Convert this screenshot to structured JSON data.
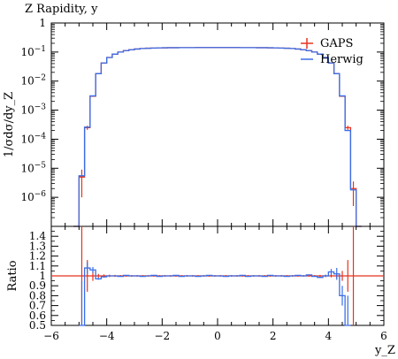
{
  "chart_data": [
    {
      "type": "line",
      "title": "Z Rapidity, y",
      "ylabel": "1/σdσ/dy_Z",
      "yscale": "log",
      "ylim": [
        1e-07,
        1
      ],
      "xlim": [
        -6,
        6
      ],
      "y_ticks": [
        {
          "value": 1,
          "label": "1"
        },
        {
          "value": 0.1,
          "base": "10",
          "exp": "−1"
        },
        {
          "value": 0.01,
          "base": "10",
          "exp": "−2"
        },
        {
          "value": 0.001,
          "base": "10",
          "exp": "−3"
        },
        {
          "value": 0.0001,
          "base": "10",
          "exp": "−4"
        },
        {
          "value": 1e-05,
          "base": "10",
          "exp": "−5"
        },
        {
          "value": 1e-06,
          "base": "10",
          "exp": "−6"
        }
      ],
      "legend_position": "top-right",
      "x_edges": [
        -5.2,
        -5.0,
        -4.8,
        -4.6,
        -4.4,
        -4.2,
        -4.0,
        -3.8,
        -3.6,
        -3.4,
        -3.2,
        -3.0,
        -2.8,
        -2.6,
        -2.4,
        -2.2,
        -2.0,
        -1.8,
        -1.6,
        -1.4,
        -1.2,
        -1.0,
        -0.8,
        -0.6,
        -0.4,
        -0.2,
        0.0,
        0.2,
        0.4,
        0.6,
        0.8,
        1.0,
        1.2,
        1.4,
        1.6,
        1.8,
        2.0,
        2.2,
        2.4,
        2.6,
        2.8,
        3.0,
        3.2,
        3.4,
        3.6,
        3.8,
        4.0,
        4.2,
        4.4,
        4.6,
        4.8,
        5.0,
        5.2
      ],
      "series": [
        {
          "name": "GAPS",
          "color": "#e8321e",
          "style": "markers-errorbars",
          "values": [
            1e-07,
            5e-06,
            0.00025,
            0.003,
            0.018,
            0.042,
            0.065,
            0.085,
            0.1,
            0.112,
            0.12,
            0.127,
            0.132,
            0.135,
            0.137,
            0.139,
            0.14,
            0.141,
            0.141,
            0.142,
            0.142,
            0.142,
            0.143,
            0.143,
            0.143,
            0.143,
            0.143,
            0.143,
            0.143,
            0.143,
            0.142,
            0.142,
            0.142,
            0.141,
            0.141,
            0.14,
            0.139,
            0.137,
            0.135,
            0.132,
            0.127,
            0.12,
            0.112,
            0.1,
            0.085,
            0.065,
            0.042,
            0.018,
            0.003,
            0.00025,
            2e-06,
            1e-07
          ],
          "errors": [
            0,
            4e-06,
            4e-05,
            0.0001,
            0.0003,
            0.0005,
            0.0006,
            0.0007,
            0.0008,
            0.0008,
            0.0008,
            0.0008,
            0.0008,
            0.0008,
            0.0008,
            0.0008,
            0.0008,
            0.0008,
            0.0008,
            0.0008,
            0.0008,
            0.0008,
            0.0008,
            0.0008,
            0.0008,
            0.0008,
            0.0008,
            0.0008,
            0.0008,
            0.0008,
            0.0008,
            0.0008,
            0.0008,
            0.0008,
            0.0008,
            0.0008,
            0.0008,
            0.0008,
            0.0008,
            0.0008,
            0.0008,
            0.0008,
            0.0008,
            0.0008,
            0.0007,
            0.0006,
            0.0005,
            0.0003,
            0.0001,
            4e-05,
            1.5e-06,
            0
          ]
        },
        {
          "name": "Herwig",
          "color": "#3a6ee8",
          "style": "step",
          "values": [
            1e-07,
            5.5e-06,
            0.00026,
            0.0031,
            0.018,
            0.042,
            0.065,
            0.085,
            0.1,
            0.112,
            0.12,
            0.127,
            0.132,
            0.135,
            0.137,
            0.139,
            0.14,
            0.141,
            0.141,
            0.142,
            0.142,
            0.142,
            0.143,
            0.143,
            0.143,
            0.143,
            0.143,
            0.143,
            0.143,
            0.143,
            0.142,
            0.142,
            0.142,
            0.141,
            0.141,
            0.14,
            0.139,
            0.137,
            0.135,
            0.132,
            0.127,
            0.12,
            0.112,
            0.1,
            0.085,
            0.065,
            0.042,
            0.018,
            0.0031,
            0.0002,
            1.8e-06,
            1e-07
          ]
        }
      ]
    },
    {
      "type": "line",
      "ylabel": "Ratio",
      "xlabel": "y_Z",
      "xlim": [
        -6,
        6
      ],
      "ylim": [
        0.5,
        1.5
      ],
      "x_ticks": [
        -6,
        -4,
        -2,
        0,
        2,
        4,
        6
      ],
      "y_ticks": [
        0.5,
        0.6,
        0.7,
        0.8,
        0.9,
        1,
        1.1,
        1.2,
        1.3,
        1.4
      ],
      "x_edges": [
        -5.2,
        -5.0,
        -4.8,
        -4.6,
        -4.4,
        -4.2,
        -4.0,
        -3.8,
        -3.6,
        -3.4,
        -3.2,
        -3.0,
        -2.8,
        -2.6,
        -2.4,
        -2.2,
        -2.0,
        -1.8,
        -1.6,
        -1.4,
        -1.2,
        -1.0,
        -0.8,
        -0.6,
        -0.4,
        -0.2,
        0.0,
        0.2,
        0.4,
        0.6,
        0.8,
        1.0,
        1.2,
        1.4,
        1.6,
        1.8,
        2.0,
        2.2,
        2.4,
        2.6,
        2.8,
        3.0,
        3.2,
        3.4,
        3.6,
        3.8,
        4.0,
        4.2,
        4.4,
        4.6,
        4.8,
        5.0,
        5.2
      ],
      "series": [
        {
          "name": "GAPS",
          "color": "#e8321e",
          "reference_value": 1,
          "error_rel": [
            0,
            0.9,
            0.16,
            0.05,
            0.02,
            0.015,
            0.012,
            0.01,
            0.008,
            0.008,
            0.008,
            0.008,
            0.008,
            0.008,
            0.008,
            0.008,
            0.008,
            0.008,
            0.008,
            0.008,
            0.008,
            0.008,
            0.008,
            0.008,
            0.008,
            0.008,
            0.008,
            0.008,
            0.008,
            0.008,
            0.008,
            0.008,
            0.008,
            0.008,
            0.008,
            0.008,
            0.008,
            0.008,
            0.008,
            0.008,
            0.008,
            0.008,
            0.008,
            0.008,
            0.01,
            0.012,
            0.015,
            0.02,
            0.05,
            0.16,
            0.9,
            0
          ]
        },
        {
          "name": "Herwig",
          "color": "#3a6ee8",
          "values": [
            null,
            0.45,
            1.08,
            1.06,
            0.97,
            0.99,
            1.0,
            1.0,
            0.995,
            1.005,
            1.0,
            1.0,
            0.995,
            1.0,
            1.005,
            0.995,
            1.0,
            1.0,
            1.005,
            0.995,
            1.0,
            1.0,
            0.995,
            1.0,
            1.005,
            1.0,
            1.0,
            0.995,
            1.0,
            1.0,
            1.005,
            0.995,
            1.0,
            1.0,
            0.995,
            1.005,
            1.0,
            1.0,
            0.995,
            1.0,
            1.005,
            1.0,
            1.01,
            0.995,
            0.985,
            1.0,
            1.04,
            1.02,
            0.8,
            0.5,
            null,
            null
          ],
          "errors": [
            0,
            0.5,
            0.06,
            0.03,
            0.01,
            0.006,
            0.004,
            0.004,
            0.004,
            0.004,
            0.004,
            0.004,
            0.004,
            0.004,
            0.004,
            0.004,
            0.004,
            0.004,
            0.004,
            0.004,
            0.004,
            0.004,
            0.004,
            0.004,
            0.004,
            0.004,
            0.004,
            0.004,
            0.004,
            0.004,
            0.004,
            0.004,
            0.004,
            0.004,
            0.004,
            0.004,
            0.004,
            0.004,
            0.004,
            0.004,
            0.004,
            0.004,
            0.004,
            0.004,
            0.006,
            0.01,
            0.03,
            0.06,
            0.1,
            0.3,
            0,
            0
          ]
        }
      ]
    }
  ]
}
